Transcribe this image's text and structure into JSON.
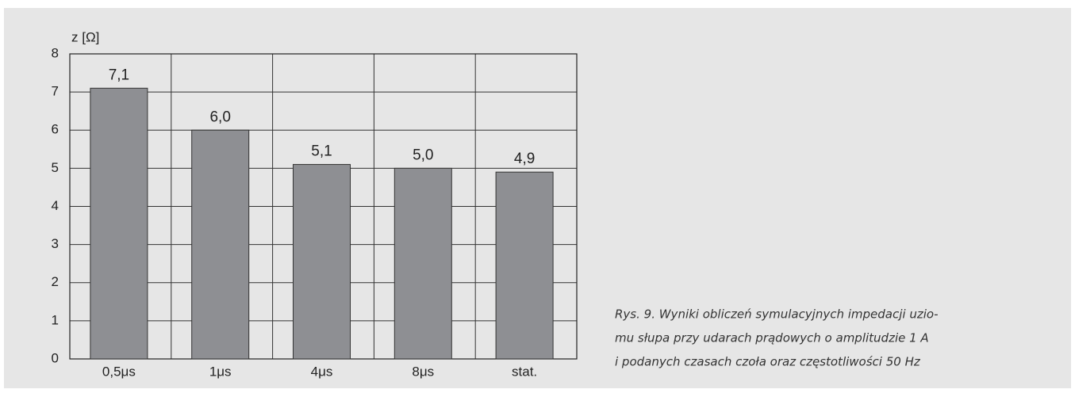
{
  "chart_data": {
    "type": "bar",
    "y_label": "z [Ω]",
    "categories": [
      "0,5μs",
      "1μs",
      "4μs",
      "8μs",
      "stat."
    ],
    "values": [
      7.1,
      6.0,
      5.1,
      5.0,
      4.9
    ],
    "value_labels": [
      "7,1",
      "6,0",
      "5,1",
      "5,0",
      "4,9"
    ],
    "color": "#8e8f93",
    "ylim": [
      0,
      8
    ],
    "yticks": [
      0,
      1,
      2,
      3,
      4,
      5,
      6,
      7,
      8
    ],
    "grid": true,
    "caption": [
      "Rys. 9. Wyniki obliczeń symulacyjnych impedacji uzio-",
      "mu słupa przy udarach prądowych o amplitudzie 1 A",
      "i podanych czasach czoła oraz częstotliwości 50 Hz"
    ]
  }
}
